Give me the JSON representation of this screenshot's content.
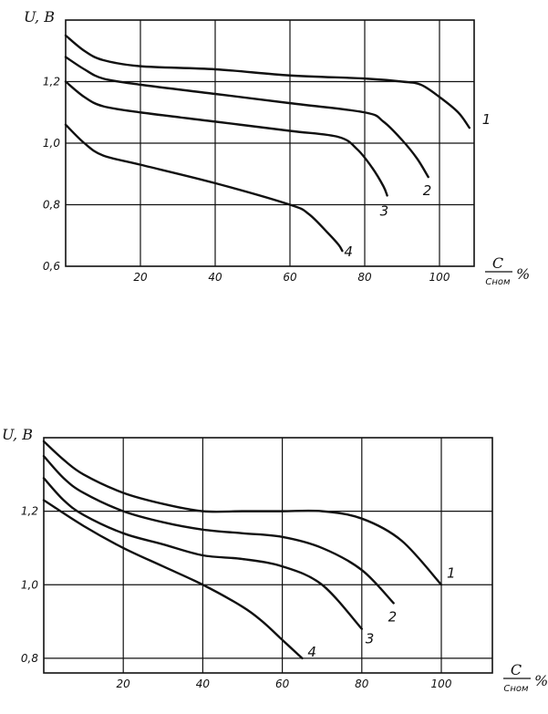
{
  "chart_data": [
    {
      "type": "line",
      "title": "",
      "ylabel": "U, B",
      "xlabel": {
        "num": "C",
        "den": "Сном",
        "unit": "%"
      },
      "xlim": [
        0,
        115
      ],
      "ylim": [
        0.6,
        1.4
      ],
      "x_ticks": [
        20,
        40,
        60,
        80,
        100
      ],
      "x_tick_labels": [
        "20",
        "40",
        "60",
        "80",
        "100"
      ],
      "y_ticks": [
        0.6,
        0.8,
        1.0,
        1.2
      ],
      "y_tick_labels": [
        "0,6",
        "0,8",
        "1,0",
        "1,2"
      ],
      "grid": true,
      "series": [
        {
          "name": "1",
          "x": [
            0,
            5,
            10,
            20,
            40,
            60,
            80,
            90,
            95,
            100,
            105,
            108
          ],
          "y": [
            1.35,
            1.3,
            1.27,
            1.25,
            1.24,
            1.22,
            1.21,
            1.2,
            1.19,
            1.15,
            1.1,
            1.05
          ]
        },
        {
          "name": "2",
          "x": [
            0,
            5,
            10,
            20,
            40,
            60,
            80,
            85,
            90,
            94,
            97
          ],
          "y": [
            1.28,
            1.24,
            1.21,
            1.19,
            1.16,
            1.13,
            1.1,
            1.07,
            1.01,
            0.95,
            0.89
          ]
        },
        {
          "name": "3",
          "x": [
            0,
            5,
            10,
            20,
            40,
            60,
            73,
            78,
            82,
            85,
            86
          ],
          "y": [
            1.2,
            1.15,
            1.12,
            1.1,
            1.07,
            1.04,
            1.02,
            0.98,
            0.92,
            0.86,
            0.83
          ]
        },
        {
          "name": "4",
          "x": [
            0,
            5,
            10,
            20,
            40,
            60,
            65,
            70,
            73,
            74
          ],
          "y": [
            1.06,
            1.0,
            0.96,
            0.93,
            0.87,
            0.8,
            0.77,
            0.71,
            0.67,
            0.65
          ]
        }
      ]
    },
    {
      "type": "line",
      "title": "",
      "ylabel": "U, B",
      "xlabel": {
        "num": "C",
        "den": "Сном",
        "unit": "%"
      },
      "xlim": [
        0,
        115
      ],
      "ylim": [
        0.76,
        1.4
      ],
      "x_ticks": [
        20,
        40,
        60,
        80,
        100
      ],
      "x_tick_labels": [
        "20",
        "40",
        "60",
        "80",
        "100"
      ],
      "y_ticks": [
        0.8,
        1.0,
        1.2
      ],
      "y_tick_labels": [
        "0,8",
        "1,0",
        "1,2"
      ],
      "grid": true,
      "series": [
        {
          "name": "1",
          "x": [
            0,
            5,
            10,
            20,
            30,
            40,
            50,
            60,
            70,
            80,
            90,
            100
          ],
          "y": [
            1.39,
            1.34,
            1.3,
            1.25,
            1.22,
            1.2,
            1.2,
            1.2,
            1.2,
            1.18,
            1.12,
            1.0
          ]
        },
        {
          "name": "2",
          "x": [
            0,
            5,
            10,
            20,
            30,
            40,
            50,
            60,
            70,
            80,
            88
          ],
          "y": [
            1.35,
            1.29,
            1.25,
            1.2,
            1.17,
            1.15,
            1.14,
            1.13,
            1.1,
            1.04,
            0.95
          ]
        },
        {
          "name": "3",
          "x": [
            0,
            5,
            10,
            20,
            30,
            40,
            50,
            60,
            70,
            80
          ],
          "y": [
            1.29,
            1.23,
            1.19,
            1.14,
            1.11,
            1.08,
            1.07,
            1.05,
            1.0,
            0.88
          ]
        },
        {
          "name": "4",
          "x": [
            0,
            10,
            20,
            30,
            40,
            50,
            55,
            60,
            65
          ],
          "y": [
            1.23,
            1.16,
            1.1,
            1.05,
            1.0,
            0.94,
            0.9,
            0.85,
            0.8
          ]
        }
      ]
    }
  ]
}
